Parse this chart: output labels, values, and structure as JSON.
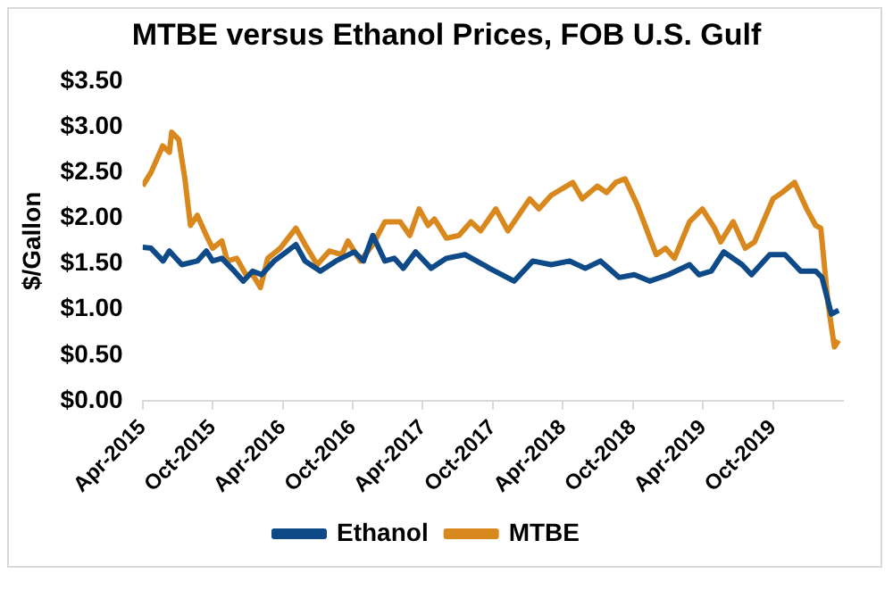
{
  "chart_data": {
    "type": "line",
    "title": "MTBE versus Ethanol Prices, FOB U.S. Gulf",
    "ylabel": "$/Gallon",
    "ylim": [
      0,
      3.5
    ],
    "yticks": [
      {
        "value": 0,
        "label": "$0.00"
      },
      {
        "value": 0.5,
        "label": "$0.50"
      },
      {
        "value": 1,
        "label": "$1.00"
      },
      {
        "value": 1.5,
        "label": "$1.50"
      },
      {
        "value": 2,
        "label": "$2.00"
      },
      {
        "value": 2.5,
        "label": "$2.50"
      },
      {
        "value": 3,
        "label": "$3.00"
      },
      {
        "value": 3.5,
        "label": "$3.50"
      }
    ],
    "xlim": [
      "2015-04",
      "2020-04"
    ],
    "xticks": [
      {
        "value": "2015-04",
        "label": "Apr-2015"
      },
      {
        "value": "2015-10",
        "label": "Oct-2015"
      },
      {
        "value": "2016-04",
        "label": "Apr-2016"
      },
      {
        "value": "2016-10",
        "label": "Oct-2016"
      },
      {
        "value": "2017-04",
        "label": "Apr-2017"
      },
      {
        "value": "2017-10",
        "label": "Oct-2017"
      },
      {
        "value": "2018-04",
        "label": "Apr-2018"
      },
      {
        "value": "2018-10",
        "label": "Oct-2018"
      },
      {
        "value": "2019-04",
        "label": "Apr-2019"
      },
      {
        "value": "2019-10",
        "label": "Oct-2019"
      }
    ],
    "grid": false,
    "legend": "bottom",
    "marker": "none",
    "line_style": "solid",
    "series": [
      {
        "name": "Ethanol",
        "color": "#0e4a87",
        "x": [
          "2015-04-01",
          "2015-04-23",
          "2015-05-24",
          "2015-06-10",
          "2015-07-12",
          "2015-08-22",
          "2015-09-15",
          "2015-10-01",
          "2015-10-25",
          "2015-11-27",
          "2015-12-20",
          "2016-01-14",
          "2016-02-07",
          "2016-03-09",
          "2016-04-11",
          "2016-05-05",
          "2016-05-29",
          "2016-07-08",
          "2016-08-18",
          "2016-10-05",
          "2016-10-29",
          "2016-11-23",
          "2016-12-24",
          "2017-01-18",
          "2017-02-11",
          "2017-03-13",
          "2017-04-23",
          "2017-06-02",
          "2017-07-20",
          "2017-09-07",
          "2017-09-23",
          "2017-11-26",
          "2018-01-14",
          "2018-03-01",
          "2018-04-19",
          "2018-05-29",
          "2018-07-08",
          "2018-08-26",
          "2018-10-05",
          "2018-11-15",
          "2019-01-02",
          "2019-02-27",
          "2019-03-21",
          "2019-04-23",
          "2019-05-25",
          "2019-07-12",
          "2019-08-06",
          "2019-09-23",
          "2019-11-02",
          "2019-12-12",
          "2020-01-21",
          "2020-02-07",
          "2020-03-01",
          "2020-03-20"
        ],
        "values": [
          1.68,
          1.67,
          1.53,
          1.64,
          1.49,
          1.53,
          1.64,
          1.53,
          1.56,
          1.42,
          1.31,
          1.42,
          1.38,
          1.53,
          1.63,
          1.71,
          1.53,
          1.42,
          1.53,
          1.63,
          1.53,
          1.81,
          1.53,
          1.56,
          1.45,
          1.63,
          1.45,
          1.56,
          1.6,
          1.49,
          1.45,
          1.31,
          1.53,
          1.49,
          1.53,
          1.45,
          1.53,
          1.35,
          1.38,
          1.31,
          1.38,
          1.49,
          1.38,
          1.42,
          1.63,
          1.49,
          1.38,
          1.6,
          1.6,
          1.42,
          1.42,
          1.35,
          0.95,
          0.99
        ]
      },
      {
        "name": "MTBE",
        "color": "#d9881e",
        "x": [
          "2015-04-01",
          "2015-04-23",
          "2015-05-23",
          "2015-06-10",
          "2015-06-16",
          "2015-07-04",
          "2015-07-20",
          "2015-08-04",
          "2015-08-22",
          "2015-09-15",
          "2015-10-01",
          "2015-10-25",
          "2015-11-09",
          "2015-12-03",
          "2015-12-27",
          "2016-01-14",
          "2016-02-04",
          "2016-02-23",
          "2016-03-25",
          "2016-05-05",
          "2016-05-29",
          "2016-06-30",
          "2016-08-01",
          "2016-09-03",
          "2016-09-19",
          "2016-10-21",
          "2016-11-23",
          "2016-12-24",
          "2017-02-03",
          "2017-02-28",
          "2017-03-22",
          "2017-04-15",
          "2017-05-01",
          "2017-06-02",
          "2017-07-04",
          "2017-08-05",
          "2017-08-30",
          "2017-10-09",
          "2017-11-10",
          "2018-01-06",
          "2018-01-30",
          "2018-03-01",
          "2018-04-27",
          "2018-05-21",
          "2018-06-30",
          "2018-07-24",
          "2018-08-17",
          "2018-09-11",
          "2018-10-13",
          "2018-11-15",
          "2018-12-01",
          "2018-12-25",
          "2019-01-18",
          "2019-02-27",
          "2019-03-30",
          "2019-05-01",
          "2019-05-17",
          "2019-06-19",
          "2019-07-20",
          "2019-08-14",
          "2019-10-01",
          "2019-10-25",
          "2019-11-27",
          "2019-12-28",
          "2020-01-21",
          "2020-02-04",
          "2020-02-23",
          "2020-03-09",
          "2020-03-20"
        ],
        "values": [
          2.35,
          2.5,
          2.79,
          2.72,
          2.94,
          2.86,
          2.43,
          1.92,
          2.03,
          1.81,
          1.67,
          1.75,
          1.53,
          1.56,
          1.38,
          1.38,
          1.24,
          1.56,
          1.67,
          1.89,
          1.71,
          1.49,
          1.64,
          1.6,
          1.75,
          1.53,
          1.71,
          1.96,
          1.96,
          1.81,
          2.1,
          1.92,
          1.99,
          1.78,
          1.81,
          1.96,
          1.86,
          2.1,
          1.86,
          2.21,
          2.1,
          2.25,
          2.39,
          2.21,
          2.35,
          2.28,
          2.39,
          2.43,
          2.14,
          1.78,
          1.6,
          1.67,
          1.56,
          1.96,
          2.1,
          1.89,
          1.74,
          1.96,
          1.67,
          1.74,
          2.21,
          2.28,
          2.39,
          2.1,
          1.92,
          1.89,
          1.06,
          0.59,
          0.66
        ]
      }
    ]
  }
}
